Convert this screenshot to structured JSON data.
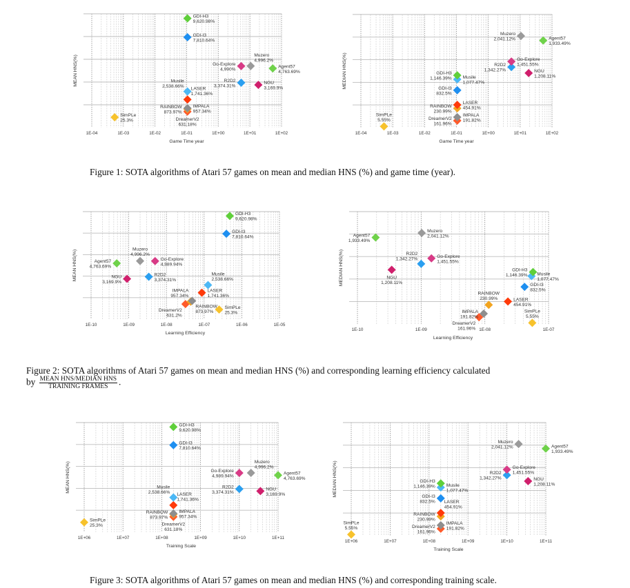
{
  "captions": {
    "fig1": "Figure 1: SOTA algorithms of Atari 57 games on mean and median HNS (%) and game time (year).",
    "fig2_line1": "Figure 2: SOTA algorithms of Atari 57 games on mean and median HNS (%) and corresponding learning efficiency calculated",
    "fig2_by": "by",
    "fig2_num": "MEAN HNS/MEDIAN HNS",
    "fig2_den": "TRAINING FRAMES",
    "fig2_end": ".",
    "fig3": "Figure 3: SOTA algorithms of Atari 57 games on mean and median HNS (%) and corresponding training scale."
  },
  "colors": {
    "GDI-H3": "#5fcf3a",
    "GDI-I3": "#1e8ff0",
    "Musile": "#4cb8f5",
    "LASER": "#ff3a0a",
    "RAINBOW": "#f2a41f",
    "IMPALA": "#8e8e8e",
    "DreamerV2": "#ff5a2a",
    "SimPLe": "#f7c22c",
    "Go-Explore": "#d83b86",
    "R2D2": "#2a9ff0",
    "Muzero": "#9a9a9a",
    "NGU": "#d01f6c",
    "Agent57": "#6fd24a"
  },
  "chart_data": [
    {
      "type": "scatter",
      "xscale": "log",
      "xlim": [
        0.0001,
        100
      ],
      "ylabel": "MEAN HNS(%)",
      "xlabel": "Game Time year",
      "xticks": [
        "1E-04",
        "1E-03",
        "1E-02",
        "1E-01",
        "1E+00",
        "1E+01",
        "1E+02"
      ],
      "grid": true,
      "points": [
        [
          "SimPLe",
          0.00053,
          25.3,
          "25.3%"
        ],
        [
          "DreamerV2",
          0.106,
          631.18,
          "631.18%"
        ],
        [
          "RAINBOW",
          0.106,
          873.97,
          "873.97%"
        ],
        [
          "IMPALA",
          0.106,
          957.34,
          "957.34%"
        ],
        [
          "LASER",
          0.106,
          1741.36,
          "1,741.36%"
        ],
        [
          "Musile",
          0.106,
          2538.66,
          "2,538.66%"
        ],
        [
          "R2D2",
          5.3,
          3374.31,
          "3,374.31%"
        ],
        [
          "NGU",
          18.5,
          3169.9,
          "3,169.9%"
        ],
        [
          "Go-Explore",
          5.3,
          4990,
          "4,990%"
        ],
        [
          "Muzero",
          10.6,
          4996.2,
          "4,996.2%"
        ],
        [
          "Agent57",
          52.8,
          4763.69,
          "4,763.69%"
        ],
        [
          "GDI-I3",
          0.106,
          7810.64,
          "7,810.64%"
        ],
        [
          "GDI-H3",
          0.106,
          9620.98,
          "9,620.98%"
        ]
      ]
    },
    {
      "type": "scatter",
      "xscale": "log",
      "xlim": [
        0.0001,
        100
      ],
      "ylabel": "MEDIAN HNS(%)",
      "xlabel": "Game Time year",
      "xticks": [
        "1E-04",
        "1E-03",
        "1E-02",
        "1E-01",
        "1E+00",
        "1E+01",
        "1E+02"
      ],
      "grid": true,
      "points": [
        [
          "SimPLe",
          0.00053,
          5.55,
          "5.55%"
        ],
        [
          "DreamerV2",
          0.106,
          161.96,
          "161.96%"
        ],
        [
          "IMPALA",
          0.106,
          191.82,
          "191.82%"
        ],
        [
          "RAINBOW",
          0.106,
          230.99,
          "230.99%"
        ],
        [
          "LASER",
          0.106,
          454.91,
          "454.91%"
        ],
        [
          "GDI-I3",
          0.106,
          832.5,
          "832.5%"
        ],
        [
          "Musile",
          0.106,
          1077.47,
          "1,077.47%"
        ],
        [
          "GDI-H3",
          0.106,
          1146.39,
          "1,146.39%"
        ],
        [
          "NGU",
          18.5,
          1208.11,
          "1,208.11%"
        ],
        [
          "R2D2",
          5.3,
          1342.27,
          "1,342.27%"
        ],
        [
          "Go-Explore",
          5.3,
          1451.55,
          "1,451.55%"
        ],
        [
          "Agent57",
          52.8,
          1933.49,
          "1,933.49%"
        ],
        [
          "Muzero",
          10.6,
          2041.12,
          "2,041.12%"
        ]
      ]
    },
    {
      "type": "scatter",
      "xscale": "log",
      "xlim": [
        1e-10,
        1e-05
      ],
      "ylabel": "MEAN HNS(%)",
      "xlabel": "Learning Efficiency",
      "xticks": [
        "1E-10",
        "1E-09",
        "1E-08",
        "1E-07",
        "1E-06",
        "1E-05"
      ],
      "grid": true,
      "points": [
        [
          "SimPLe",
          2.5e-07,
          25.3,
          "25.3%"
        ],
        [
          "DreamerV2",
          3.2e-08,
          631.2,
          "631.2%"
        ],
        [
          "RAINBOW",
          4.4e-08,
          873.97,
          "873.97%"
        ],
        [
          "IMPALA",
          4.8e-08,
          957.34,
          "957.34%"
        ],
        [
          "LASER",
          8.7e-08,
          1741.36,
          "1,741.36%"
        ],
        [
          "Musile",
          1.27e-07,
          2538.66,
          "2,538.66%"
        ],
        [
          "NGU",
          9e-10,
          3169.9,
          "3,169.9%"
        ],
        [
          "R2D2",
          3.4e-09,
          3374.31,
          "3,374.31%"
        ],
        [
          "Agent57",
          4.8e-10,
          4763.69,
          "4,763.69%"
        ],
        [
          "Muzero",
          2e-09,
          4996.2,
          "4,996.2%"
        ],
        [
          "Go-Explore",
          5e-09,
          4989.94,
          "4,989.94%"
        ],
        [
          "GDI-I3",
          3.9e-07,
          7810.64,
          "7,810.64%"
        ],
        [
          "GDI-H3",
          4.8e-07,
          9620.98,
          "9,620.98%"
        ]
      ]
    },
    {
      "type": "scatter",
      "xscale": "log",
      "xlim": [
        1e-10,
        1e-07
      ],
      "ylabel": "MEDIAN HNS(%)",
      "xlabel": "Learning Efficiency",
      "xticks": [
        "1E-10",
        "1E-09",
        "1E-08",
        "1E-07"
      ],
      "grid": true,
      "points": [
        [
          "SimPLe",
          5.55e-08,
          5.55,
          "5.55%"
        ],
        [
          "DreamerV2",
          8.1e-09,
          161.96,
          "161.96%"
        ],
        [
          "IMPALA",
          9.6e-09,
          191.82,
          "191.82%"
        ],
        [
          "RAINBOW",
          1.15e-08,
          230.99,
          "230.99%"
        ],
        [
          "LASER",
          2.3e-08,
          454.91,
          "454.91%"
        ],
        [
          "GDI-I3",
          4.2e-08,
          832.5,
          "832.5%"
        ],
        [
          "Musile",
          5.4e-08,
          1077.47,
          "1,077.47%"
        ],
        [
          "GDI-H3",
          5.7e-08,
          1146.39,
          "1,146.39%"
        ],
        [
          "NGU",
          3.45e-10,
          1208.11,
          "1,208.11%"
        ],
        [
          "R2D2",
          1e-09,
          1342.27,
          "1,342.27%"
        ],
        [
          "Go-Explore",
          1.45e-09,
          1451.55,
          "1,451.55%"
        ],
        [
          "Agent57",
          1.93e-10,
          1933.49,
          "1,933.49%"
        ],
        [
          "Muzero",
          1.02e-09,
          2041.12,
          "2,041.12%"
        ]
      ]
    },
    {
      "type": "scatter",
      "xscale": "log",
      "xlim": [
        1000000.0,
        100000000000.0
      ],
      "ylabel": "MEAN HNS(%)",
      "xlabel": "Training Scale",
      "xticks": [
        "1E+06",
        "1E+07",
        "1E+08",
        "1E+09",
        "1E+10",
        "1E+11"
      ],
      "grid": true,
      "points": [
        [
          "SimPLe",
          1000000.0,
          25.3,
          "25.3%"
        ],
        [
          "DreamerV2",
          200000000.0,
          631.18,
          "631.18%"
        ],
        [
          "RAINBOW",
          200000000.0,
          873.97,
          "873.97%"
        ],
        [
          "IMPALA",
          200000000.0,
          957.34,
          "957.34%"
        ],
        [
          "LASER",
          200000000.0,
          1741.36,
          "1,741.36%"
        ],
        [
          "Musile",
          200000000.0,
          2538.66,
          "2,538.66%"
        ],
        [
          "R2D2",
          10000000000.0,
          3374.31,
          "3,374.31%"
        ],
        [
          "NGU",
          35000000000.0,
          3169.9,
          "3,169.9%"
        ],
        [
          "Go-Explore",
          10000000000.0,
          4989.94,
          "4,989.94%"
        ],
        [
          "Muzero",
          20000000000.0,
          4996.2,
          "4,996.2%"
        ],
        [
          "Agent57",
          100000000000.0,
          4763.69,
          "4,763.69%"
        ],
        [
          "GDI-I3",
          200000000.0,
          7810.64,
          "7,810.64%"
        ],
        [
          "GDI-H3",
          200000000.0,
          9620.98,
          "9,620.98%"
        ]
      ]
    },
    {
      "type": "scatter",
      "xscale": "log",
      "xlim": [
        1000000.0,
        100000000000.0
      ],
      "ylabel": "MEDIAN HNS(%)",
      "xlabel": "Training Scale",
      "xticks": [
        "1E+06",
        "1E+07",
        "1E+08",
        "1E+09",
        "1E+10",
        "1E+11"
      ],
      "grid": true,
      "points": [
        [
          "SimPLe",
          1000000.0,
          5.55,
          "5.55%"
        ],
        [
          "DreamerV2",
          200000000.0,
          161.96,
          "161.96%"
        ],
        [
          "IMPALA",
          200000000.0,
          191.82,
          "191.82%"
        ],
        [
          "RAINBOW",
          200000000.0,
          230.99,
          "230.99%"
        ],
        [
          "LASER",
          200000000.0,
          454.91,
          "454.91%"
        ],
        [
          "GDI-I3",
          200000000.0,
          832.5,
          "832.5%"
        ],
        [
          "Musile",
          200000000.0,
          1077.47,
          "1,077.47%"
        ],
        [
          "GDI-H3",
          200000000.0,
          1146.39,
          "1,146.39%"
        ],
        [
          "NGU",
          35000000000.0,
          1208.11,
          "1,208.11%"
        ],
        [
          "R2D2",
          10000000000.0,
          1342.27,
          "1,342.27%"
        ],
        [
          "Go-Explore",
          10000000000.0,
          1451.55,
          "1,451.55%"
        ],
        [
          "Agent57",
          100000000000.0,
          1933.49,
          "1,933.49%"
        ],
        [
          "Muzero",
          20000000000.0,
          2041.12,
          "2,041.12%"
        ]
      ]
    }
  ]
}
